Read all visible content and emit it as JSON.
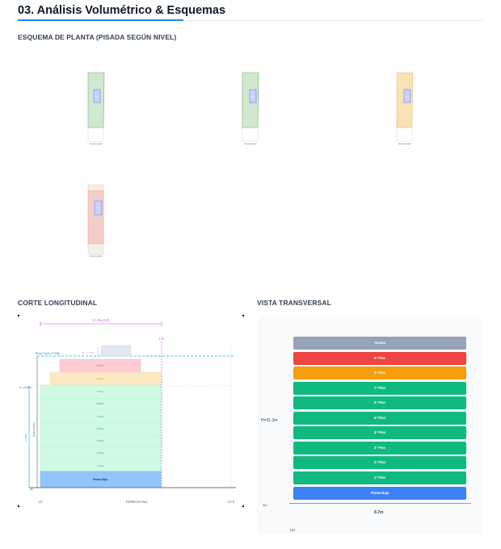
{
  "title": "03. Análisis Volumétrico & Esquemas",
  "planta": {
    "heading": "ESQUEMA DE PLANTA (PISADA SEGÚN NIVEL)",
    "items": [
      {
        "label": "Enumerado",
        "core": "Núcleo",
        "fill": "#cfe8cf",
        "stroke": "#6ab26a"
      },
      {
        "label": "Enumerado",
        "core": "Núcleo",
        "fill": "#cfe8cf",
        "stroke": "#6ab26a"
      },
      {
        "label": "Enumerado",
        "core": "Núcleo",
        "fill": "#f8e2b4",
        "stroke": "#d9a441"
      },
      {
        "label": "Enumerado",
        "core": "Núcleo",
        "fill": "#f4cdc9",
        "stroke": "#d9887f"
      }
    ]
  },
  "corte": {
    "heading": "CORTE LONGITUDINAL",
    "width_label": "21.20m (LF)",
    "lf_label": "LFI",
    "limit_label": "Plano Límite 31.60m",
    "h_label": "H = 2.75m",
    "level_label": "8 = 24.00m",
    "axis_label": "SUB ALTURA",
    "side_label": "23.60m",
    "ground_label": "0m",
    "base_label": "Planta Baja",
    "x_labels": [
      "LO",
      "FONDO (50.15m)",
      "LO E"
    ],
    "floors": [
      "9° Piso",
      "8° Piso",
      "7° Piso",
      "6° Piso",
      "5° Piso",
      "4° Piso",
      "3° Piso",
      "2° Piso",
      "1° Piso"
    ]
  },
  "transversal": {
    "heading": "VISTA TRANSVERSAL",
    "height_label": "H=31.2m",
    "ground_label": "0m",
    "width_label": "8.7m",
    "lo_label": "LO",
    "bands": [
      {
        "label": "Azotea",
        "color": "#94a3b8"
      },
      {
        "label": "9° Piso",
        "color": "#ef4444"
      },
      {
        "label": "8° Piso",
        "color": "#f59e0b"
      },
      {
        "label": "7° Piso",
        "color": "#10b981"
      },
      {
        "label": "6° Piso",
        "color": "#10b981"
      },
      {
        "label": "5° Piso",
        "color": "#10b981"
      },
      {
        "label": "4° Piso",
        "color": "#10b981"
      },
      {
        "label": "3° Piso",
        "color": "#10b981"
      },
      {
        "label": "2° Piso",
        "color": "#10b981"
      },
      {
        "label": "1° Piso",
        "color": "#10b981"
      },
      {
        "label": "Planta Baja",
        "color": "#3b82f6"
      }
    ]
  }
}
